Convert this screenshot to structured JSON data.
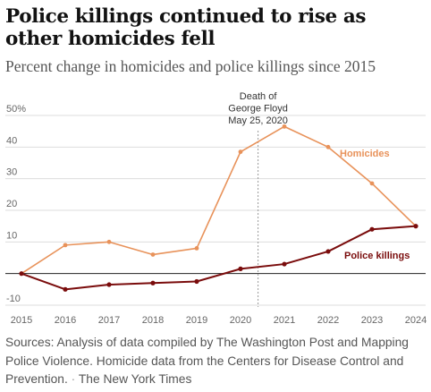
{
  "title": "Police killings continued to rise as other homicides fell",
  "subtitle": "Percent change in homicides and police killings since 2015",
  "source": {
    "text": "Sources: Analysis of data compiled by The Washington Post and Mapping Police Violence. Homicide data from the Centers for Disease Control and Prevention.",
    "separator": "·",
    "credit": "The New York Times"
  },
  "colors": {
    "homicides": "#e8925a",
    "police_killings": "#7a0c0c",
    "grid": "#dddddd",
    "baseline": "#222222",
    "annotation_line": "#999999",
    "axis_text": "#666666"
  },
  "chart_data": {
    "type": "line",
    "x": [
      2015,
      2016,
      2017,
      2018,
      2019,
      2020,
      2021,
      2022,
      2023,
      2024
    ],
    "ylim": [
      -10,
      50
    ],
    "yticks": [
      50,
      40,
      30,
      20,
      10,
      -10
    ],
    "ytick_labels": [
      "50%",
      "40",
      "30",
      "20",
      "10",
      "-10"
    ],
    "grid": true,
    "series": [
      {
        "name": "Homicides",
        "color": "#e8925a",
        "values": [
          0,
          9,
          10,
          6,
          8,
          38.5,
          46.5,
          40,
          28.5,
          15
        ]
      },
      {
        "name": "Police killings",
        "color": "#7a0c0c",
        "values": [
          0,
          -5,
          -3.5,
          -3,
          -2.5,
          1.5,
          3,
          7,
          14,
          15
        ]
      }
    ],
    "annotation": {
      "x": 2020.4,
      "lines": [
        "Death of",
        "George Floyd",
        "May 25, 2020"
      ]
    }
  }
}
